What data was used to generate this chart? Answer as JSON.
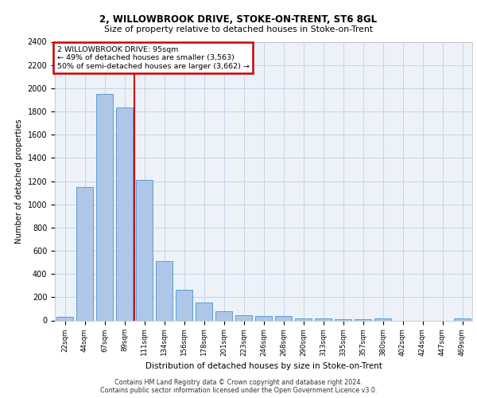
{
  "title1": "2, WILLOWBROOK DRIVE, STOKE-ON-TRENT, ST6 8GL",
  "title2": "Size of property relative to detached houses in Stoke-on-Trent",
  "xlabel": "Distribution of detached houses by size in Stoke-on-Trent",
  "ylabel": "Number of detached properties",
  "annotation_title": "2 WILLOWBROOK DRIVE: 95sqm",
  "annotation_line1": "← 49% of detached houses are smaller (3,563)",
  "annotation_line2": "50% of semi-detached houses are larger (3,662) →",
  "footer1": "Contains HM Land Registry data © Crown copyright and database right 2024.",
  "footer2": "Contains public sector information licensed under the Open Government Licence v3.0.",
  "bar_color": "#aec6e8",
  "bar_edge_color": "#5a9fd4",
  "grid_color": "#c8d4e8",
  "bg_color": "#edf2f9",
  "annotation_line_color": "#cc0000",
  "annotation_box_color": "#cc0000",
  "categories": [
    "22sqm",
    "44sqm",
    "67sqm",
    "89sqm",
    "111sqm",
    "134sqm",
    "156sqm",
    "178sqm",
    "201sqm",
    "223sqm",
    "246sqm",
    "268sqm",
    "290sqm",
    "313sqm",
    "335sqm",
    "357sqm",
    "380sqm",
    "402sqm",
    "424sqm",
    "447sqm",
    "469sqm"
  ],
  "values": [
    30,
    1150,
    1950,
    1835,
    1210,
    510,
    265,
    155,
    78,
    48,
    40,
    40,
    20,
    20,
    10,
    10,
    20,
    0,
    0,
    0,
    20
  ],
  "ylim": [
    0,
    2400
  ],
  "yticks": [
    0,
    200,
    400,
    600,
    800,
    1000,
    1200,
    1400,
    1600,
    1800,
    2000,
    2200,
    2400
  ],
  "red_line_x": 3.48,
  "figsize": [
    6.0,
    5.0
  ],
  "dpi": 100
}
